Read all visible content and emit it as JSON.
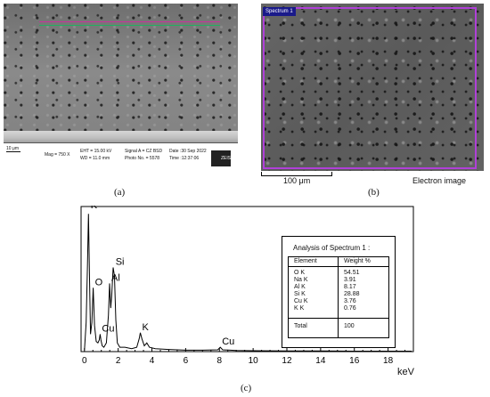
{
  "panel_a": {
    "label": "(a)",
    "scale_bar": "10 μm",
    "mag": "Mag =  750 X",
    "eht": "EHT = 15.00 kV",
    "wd": "WD = 11.0 mm",
    "signal": "Signal A = CZ BSD",
    "photo": "Photo No. = 5578",
    "date": "Date :30 Sep 2022",
    "time": "Time :12:37:06",
    "logo": "ZEISS"
  },
  "panel_b": {
    "label": "(b)",
    "spectrum_tag": "Spectrum 1",
    "scale_bar": "100 μm",
    "image_title": "Electron image"
  },
  "panel_c": {
    "label": "(c)",
    "table": {
      "title": "Analysis of Spectrum 1 :",
      "headers": [
        "Element",
        "Weight %"
      ],
      "rows": [
        [
          "O K",
          "54.51"
        ],
        [
          "Na K",
          "3.91"
        ],
        [
          "Al K",
          "8.17"
        ],
        [
          "Si K",
          "28.88"
        ],
        [
          "Cu K",
          "3.76"
        ],
        [
          "K K",
          "0.76"
        ]
      ],
      "total": [
        "Total",
        "100"
      ]
    }
  },
  "chart_data": {
    "type": "line",
    "xlabel": "keV",
    "xlim": [
      -0.2,
      19.5
    ],
    "ylim": [
      0,
      100
    ],
    "x_ticks": [
      0,
      2,
      4,
      6,
      8,
      10,
      12,
      14,
      16,
      18
    ],
    "x_tick_labels": [
      "0",
      "2",
      "4",
      "6",
      "8",
      "10",
      "12",
      "14",
      "16",
      "18"
    ],
    "peaks": [
      {
        "label": "K",
        "x": 0.26,
        "y": 97
      },
      {
        "label": "O",
        "x": 0.52,
        "y": 44
      },
      {
        "label": "Cu",
        "x": 0.93,
        "y": 12
      },
      {
        "label": "Al",
        "x": 1.49,
        "y": 47
      },
      {
        "label": "Si",
        "x": 1.74,
        "y": 58
      },
      {
        "label": "K",
        "x": 3.31,
        "y": 13
      },
      {
        "label": "Cu",
        "x": 8.05,
        "y": 3
      }
    ],
    "spectrum": [
      [
        0,
        1
      ],
      [
        0.1,
        20
      ],
      [
        0.18,
        60
      ],
      [
        0.24,
        95
      ],
      [
        0.3,
        50
      ],
      [
        0.36,
        12
      ],
      [
        0.44,
        20
      ],
      [
        0.52,
        44
      ],
      [
        0.6,
        18
      ],
      [
        0.7,
        7
      ],
      [
        0.8,
        6
      ],
      [
        0.88,
        8
      ],
      [
        0.93,
        12
      ],
      [
        0.98,
        8
      ],
      [
        1.05,
        4
      ],
      [
        1.15,
        3
      ],
      [
        1.3,
        6
      ],
      [
        1.42,
        25
      ],
      [
        1.49,
        47
      ],
      [
        1.56,
        30
      ],
      [
        1.62,
        40
      ],
      [
        1.7,
        58
      ],
      [
        1.78,
        52
      ],
      [
        1.86,
        22
      ],
      [
        1.95,
        6
      ],
      [
        2.1,
        3
      ],
      [
        2.4,
        3
      ],
      [
        2.8,
        2
      ],
      [
        3.1,
        3
      ],
      [
        3.25,
        9
      ],
      [
        3.31,
        13
      ],
      [
        3.4,
        9
      ],
      [
        3.55,
        4
      ],
      [
        3.7,
        6
      ],
      [
        3.85,
        3
      ],
      [
        4.2,
        2
      ],
      [
        5,
        1.5
      ],
      [
        6,
        1
      ],
      [
        7,
        1
      ],
      [
        7.9,
        1.2
      ],
      [
        8.05,
        3
      ],
      [
        8.2,
        1.2
      ],
      [
        9,
        0.8
      ],
      [
        10,
        0.6
      ],
      [
        12,
        0.5
      ],
      [
        14,
        0.4
      ],
      [
        16,
        0.3
      ],
      [
        18,
        0.3
      ],
      [
        19.4,
        0.3
      ]
    ]
  }
}
